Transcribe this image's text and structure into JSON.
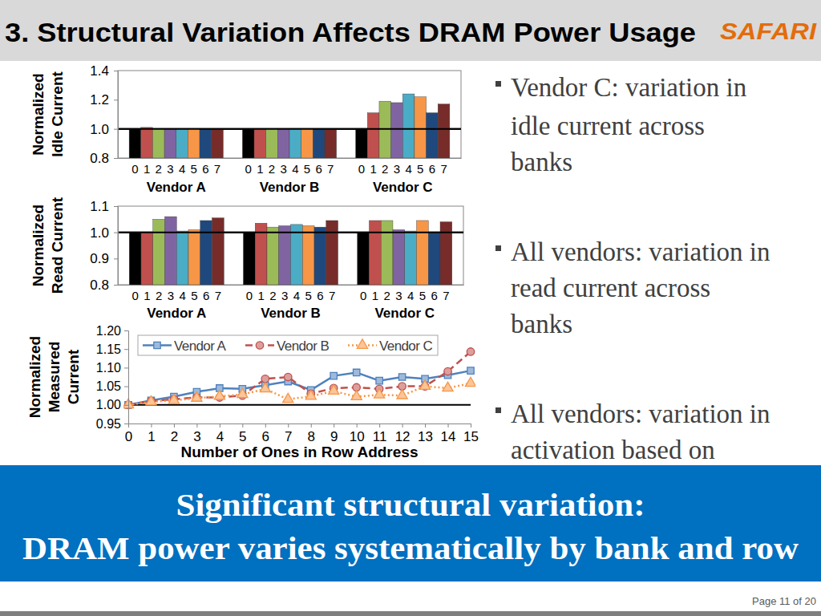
{
  "slide": {
    "title": "3. Structural Variation Affects DRAM Power Usage",
    "logo": "SAFARI",
    "bullets": [
      [
        "Vendor C: variation in",
        "idle current across",
        "banks"
      ],
      [
        "All vendors: variation in",
        "read current across",
        "banks"
      ],
      [
        "All vendors: variation in",
        "activation based on"
      ]
    ],
    "banner": [
      "Significant structural variation:",
      "DRAM power varies systematically by bank and row"
    ],
    "footer": "Page 11 of 20"
  },
  "chart_data": [
    {
      "type": "bar",
      "y_label": [
        "Normalized",
        "Idle Current"
      ],
      "categories": [
        "Vendor A",
        "Vendor B",
        "Vendor C"
      ],
      "series": [
        {
          "name": "0",
          "color": "#000000",
          "values": [
            1.0,
            1.0,
            1.0
          ]
        },
        {
          "name": "1",
          "color": "#c0504d",
          "values": [
            1.01,
            1.0,
            1.11
          ]
        },
        {
          "name": "2",
          "color": "#9bbb59",
          "values": [
            1.0,
            1.0,
            1.19
          ]
        },
        {
          "name": "3",
          "color": "#8064a2",
          "values": [
            1.0,
            1.0,
            1.18
          ]
        },
        {
          "name": "4",
          "color": "#4bacc6",
          "values": [
            1.0,
            1.0,
            1.24
          ]
        },
        {
          "name": "5",
          "color": "#f79646",
          "values": [
            1.0,
            1.0,
            1.22
          ]
        },
        {
          "name": "6",
          "color": "#1f497d",
          "values": [
            1.0,
            1.0,
            1.11
          ]
        },
        {
          "name": "7",
          "color": "#772c2a",
          "values": [
            1.0,
            1.0,
            1.17
          ]
        }
      ],
      "ylim": [
        0.8,
        1.4
      ],
      "yticks": [
        0.8,
        {
          "value": 1.0,
          "label": "1.0"
        },
        1.2,
        1.4
      ],
      "reference_line": 1.0
    },
    {
      "type": "bar",
      "y_label": [
        "Normalized",
        "Read Current"
      ],
      "categories": [
        "Vendor A",
        "Vendor B",
        "Vendor C"
      ],
      "series": [
        {
          "name": "0",
          "color": "#000000",
          "values": [
            1.0,
            1.0,
            1.0
          ]
        },
        {
          "name": "1",
          "color": "#c0504d",
          "values": [
            1.0,
            1.035,
            1.045
          ]
        },
        {
          "name": "2",
          "color": "#9bbb59",
          "values": [
            1.05,
            1.02,
            1.045
          ]
        },
        {
          "name": "3",
          "color": "#8064a2",
          "values": [
            1.06,
            1.025,
            1.01
          ]
        },
        {
          "name": "4",
          "color": "#4bacc6",
          "values": [
            1.005,
            1.03,
            1.005
          ]
        },
        {
          "name": "5",
          "color": "#f79646",
          "values": [
            1.01,
            1.025,
            1.045
          ]
        },
        {
          "name": "6",
          "color": "#1f497d",
          "values": [
            1.045,
            1.02,
            1.0
          ]
        },
        {
          "name": "7",
          "color": "#772c2a",
          "values": [
            1.055,
            1.045,
            1.04
          ]
        }
      ],
      "ylim": [
        0.8,
        1.1
      ],
      "yticks": [
        0.8,
        0.9,
        {
          "value": 1.0,
          "label": "1.0"
        },
        1.1
      ],
      "reference_line": 1.0
    },
    {
      "type": "line",
      "x_label": "Number of Ones in Row Address",
      "y_label": [
        "Normalized",
        "Measured",
        "Current"
      ],
      "x": [
        0,
        1,
        2,
        3,
        4,
        5,
        6,
        7,
        8,
        9,
        10,
        11,
        12,
        13,
        14,
        15
      ],
      "series": [
        {
          "name": "Vendor A",
          "color": "#4f81bd",
          "marker": "square",
          "line_style": "solid",
          "values": [
            1.0,
            1.012,
            1.022,
            1.035,
            1.045,
            1.043,
            1.053,
            1.063,
            1.04,
            1.078,
            1.087,
            1.065,
            1.075,
            1.07,
            1.08,
            1.092
          ]
        },
        {
          "name": "Vendor B",
          "color": "#c0504d",
          "marker": "circle",
          "line_style": "dashed",
          "values": [
            1.0,
            1.01,
            1.015,
            1.02,
            1.02,
            1.025,
            1.07,
            1.075,
            1.03,
            1.045,
            1.047,
            1.043,
            1.05,
            1.05,
            1.09,
            1.143
          ]
        },
        {
          "name": "Vendor C",
          "color": "#f79646",
          "marker": "triangle",
          "line_style": "dotted",
          "values": [
            1.0,
            1.008,
            1.012,
            1.018,
            1.023,
            1.028,
            1.043,
            1.015,
            1.023,
            1.037,
            1.022,
            1.027,
            1.025,
            1.05,
            1.045,
            1.058
          ]
        }
      ],
      "xlim": [
        0,
        15
      ],
      "xticks": [
        0,
        1,
        2,
        3,
        4,
        5,
        6,
        7,
        8,
        9,
        10,
        11,
        12,
        13,
        14,
        15
      ],
      "ylim": [
        0.95,
        1.2
      ],
      "yticks": [
        0.95,
        {
          "value": 1.0,
          "label": "1.00"
        },
        1.05,
        {
          "value": 1.1,
          "label": "1.10"
        },
        1.15,
        {
          "value": 1.2,
          "label": "1.20"
        }
      ],
      "legend": "top",
      "reference_line": 1.0
    }
  ]
}
